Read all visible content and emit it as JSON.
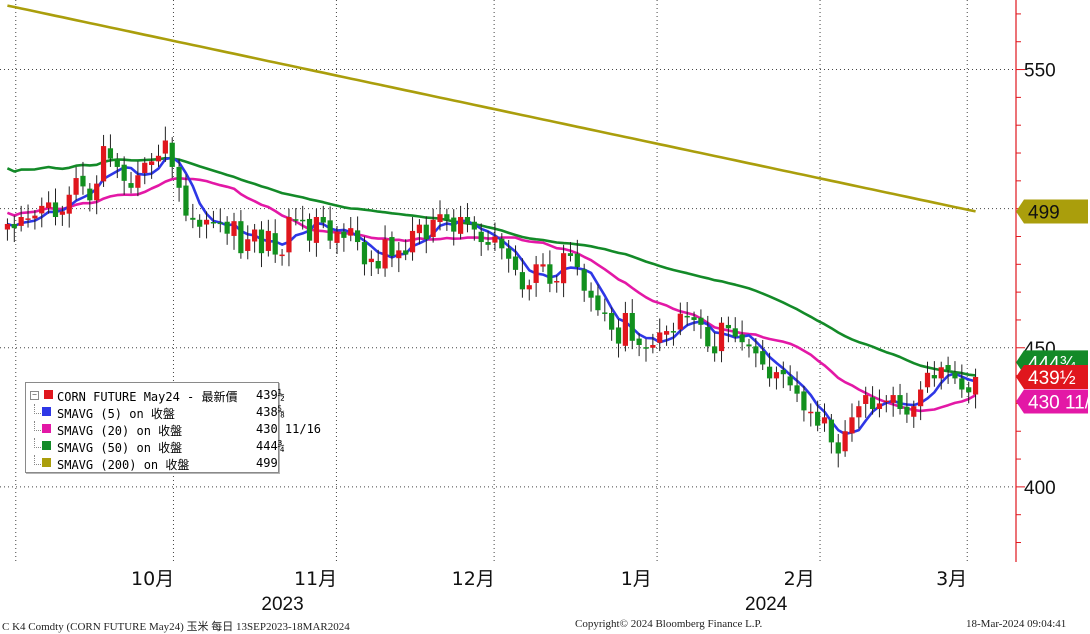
{
  "chart_data": {
    "type": "candlestick",
    "title": "",
    "y_ticks": [
      550,
      450,
      400
    ],
    "y_range": [
      373,
      575
    ],
    "x_month_labels": [
      {
        "label": "10月",
        "date": "2023-10-01"
      },
      {
        "label": "11月",
        "date": "2023-11-01"
      },
      {
        "label": "12月",
        "date": "2023-12-01"
      },
      {
        "label": "1月",
        "date": "2024-01-01"
      },
      {
        "label": "2月",
        "date": "2024-02-01"
      },
      {
        "label": "3月",
        "date": "2024-03-01"
      }
    ],
    "x_year_labels": [
      {
        "label": "2023",
        "date": "2023-11-01"
      },
      {
        "label": "2024",
        "date": "2024-02-01"
      }
    ],
    "x_range": [
      "2023-09-13",
      "2024-03-18"
    ],
    "grid": true,
    "series": [
      {
        "name": "CORN FUTURE May24 - 最新價",
        "color": "#e0161d",
        "last_label": "439½",
        "candles_close": [
          494.5,
          493,
          497,
          496.5,
          497.5,
          501,
          502.25,
          497,
          499,
          505,
          511,
          508,
          503,
          509,
          522.5,
          518,
          515,
          510,
          507.5,
          512,
          516.5,
          517,
          519,
          524.5,
          515,
          507.5,
          497.5,
          496,
          493.5,
          496,
          495,
          494.5,
          491,
          495.5,
          484,
          489,
          492.5,
          484,
          492,
          483.5,
          483.5,
          497,
          496,
          495.5,
          488.5,
          497,
          495,
          488.5,
          491.75,
          489.5,
          493,
          488,
          480,
          482,
          478.5,
          489,
          483,
          485,
          483.5,
          492,
          494.25,
          489,
          496,
          498,
          496,
          491.75,
          497,
          494.5,
          492.5,
          488,
          487,
          490,
          485.75,
          482,
          478,
          471,
          472.5,
          480,
          480,
          473,
          474,
          484,
          483,
          479,
          470.5,
          468,
          463.5,
          462.5,
          456.5,
          451.5,
          462.5,
          452.5,
          451,
          450,
          451,
          455.5,
          456,
          455.75,
          462.25,
          461,
          460,
          458.25,
          450.5,
          448,
          459,
          457,
          454,
          452,
          450.5,
          448,
          444,
          439,
          441.25,
          440.5,
          436.5,
          433.5,
          427.5,
          427,
          422,
          425,
          416,
          412,
          420,
          425,
          429,
          433,
          428,
          430,
          431,
          433,
          428,
          426,
          429,
          435,
          441,
          439,
          443,
          442,
          439,
          435,
          434,
          439.5
        ]
      },
      {
        "name": "SMAVG (5)  on 收盤",
        "color": "#2e37e6",
        "last_label": "438⅝"
      },
      {
        "name": "SMAVG (20)  on 收盤",
        "color": "#e318a6",
        "last_label": "430 11/16"
      },
      {
        "name": "SMAVG (50)  on 收盤",
        "color": "#138a28",
        "last_label": "444¾"
      },
      {
        "name": "SMAVG (200)  on 收盤",
        "color": "#aa9e0c",
        "last_label": "499"
      }
    ],
    "sma200_points": [
      [
        0,
        573
      ],
      [
        9,
        571.5
      ],
      [
        18,
        570
      ],
      [
        26,
        568
      ],
      [
        36,
        565.5
      ],
      [
        45,
        562.5
      ],
      [
        55,
        560
      ],
      [
        63,
        557
      ],
      [
        73,
        553
      ],
      [
        82,
        550
      ],
      [
        91,
        547
      ],
      [
        100,
        543.5
      ],
      [
        110,
        539.5
      ],
      [
        118,
        536
      ],
      [
        127,
        532
      ],
      [
        134,
        528
      ],
      [
        138,
        526
      ],
      [
        143,
        503
      ],
      [
        149,
        499
      ]
    ],
    "axis_labels": {
      "price_550": "550",
      "price_450": "450",
      "price_400": "400",
      "tag_200": "499",
      "tag_50": "444¾",
      "tag_price": "439½",
      "tag_20": "430 11/16"
    }
  },
  "legend": {
    "rows": [
      {
        "label": "CORN FUTURE May24 - 最新價",
        "value": "439½",
        "color": "#e0161d"
      },
      {
        "label": "SMAVG (5)  on 收盤",
        "value": "438⅝",
        "color": "#2e37e6"
      },
      {
        "label": "SMAVG (20)  on 收盤",
        "value": "430 11/16",
        "color": "#e318a6"
      },
      {
        "label": "SMAVG (50)  on 收盤",
        "value": "444¾",
        "color": "#138a28"
      },
      {
        "label": "SMAVG (200)  on 收盤",
        "value": "499",
        "color": "#aa9e0c"
      }
    ]
  },
  "footer": {
    "left": "C K4 Comdty (CORN FUTURE       May24) 玉米  每日 13SEP2023-18MAR2024",
    "center": "Copyright© 2024 Bloomberg Finance L.P.",
    "right": "18-Mar-2024 09:04:41"
  }
}
